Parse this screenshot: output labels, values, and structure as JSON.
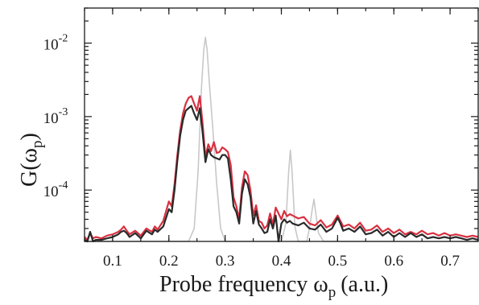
{
  "chart_data": {
    "type": "line",
    "xlabel": "Probe frequency ω",
    "xlabel_sub": "p",
    "xlabel_suffix": "(a.u.)",
    "ylabel": "G(ω",
    "ylabel_sub": "p",
    "ylabel_suffix": ")",
    "xlim": [
      0.05,
      0.75
    ],
    "ylim": [
      2e-05,
      0.03
    ],
    "yscale": "log",
    "grid": false,
    "legend": "none",
    "x_ticks": [
      {
        "value": 0.1,
        "label": "0.1"
      },
      {
        "value": 0.2,
        "label": "0.2"
      },
      {
        "value": 0.3,
        "label": "0.3"
      },
      {
        "value": 0.4,
        "label": "0.4"
      },
      {
        "value": 0.5,
        "label": "0.5"
      },
      {
        "value": 0.6,
        "label": "0.6"
      },
      {
        "value": 0.7,
        "label": "0.7"
      }
    ],
    "y_ticks": [
      {
        "value": 0.01,
        "base": "10",
        "exp": "-2"
      },
      {
        "value": 0.001,
        "base": "10",
        "exp": "-3"
      },
      {
        "value": 0.0001,
        "base": "10",
        "exp": "-4"
      }
    ],
    "series": [
      {
        "color": "#c8c8c8",
        "width": 1.6,
        "x": [
          0.05,
          0.2,
          0.235,
          0.245,
          0.252,
          0.258,
          0.262,
          0.265,
          0.268,
          0.272,
          0.278,
          0.285,
          0.292,
          0.3,
          0.4,
          0.408,
          0.413,
          0.416,
          0.419,
          0.424,
          0.43,
          0.445,
          0.45,
          0.455,
          0.458,
          0.461,
          0.466,
          0.475,
          0.75
        ],
        "y": [
          2e-05,
          2e-05,
          2e-05,
          3e-05,
          0.00018,
          0.0025,
          0.008,
          0.012,
          0.008,
          0.0028,
          0.0007,
          0.00012,
          3e-05,
          2e-05,
          2e-05,
          3.5e-05,
          0.00018,
          0.00035,
          0.00018,
          3.2e-05,
          2e-05,
          2e-05,
          3e-05,
          5.5e-05,
          7.5e-05,
          5e-05,
          2.6e-05,
          2e-05,
          2e-05
        ]
      },
      {
        "color": "#d93040",
        "width": 2.2,
        "x": [
          0.05,
          0.055,
          0.06,
          0.065,
          0.07,
          0.08,
          0.09,
          0.1,
          0.11,
          0.115,
          0.12,
          0.125,
          0.13,
          0.14,
          0.15,
          0.16,
          0.17,
          0.175,
          0.18,
          0.19,
          0.2,
          0.205,
          0.21,
          0.215,
          0.22,
          0.225,
          0.23,
          0.235,
          0.24,
          0.245,
          0.25,
          0.255,
          0.26,
          0.265,
          0.27,
          0.275,
          0.28,
          0.285,
          0.29,
          0.295,
          0.3,
          0.305,
          0.31,
          0.315,
          0.32,
          0.325,
          0.33,
          0.335,
          0.34,
          0.345,
          0.35,
          0.355,
          0.36,
          0.365,
          0.37,
          0.375,
          0.38,
          0.385,
          0.39,
          0.395,
          0.4,
          0.405,
          0.41,
          0.415,
          0.42,
          0.43,
          0.44,
          0.45,
          0.46,
          0.47,
          0.48,
          0.49,
          0.5,
          0.505,
          0.51,
          0.52,
          0.53,
          0.54,
          0.55,
          0.56,
          0.57,
          0.58,
          0.59,
          0.6,
          0.61,
          0.62,
          0.63,
          0.64,
          0.65,
          0.66,
          0.67,
          0.68,
          0.69,
          0.7,
          0.71,
          0.72,
          0.73,
          0.74,
          0.75
        ],
        "y": [
          2.3e-05,
          2.1e-05,
          2.6e-05,
          2.2e-05,
          2.3e-05,
          2.2e-05,
          2.4e-05,
          2.5e-05,
          2.7e-05,
          2.9e-05,
          3.2e-05,
          2.8e-05,
          2.5e-05,
          2.8e-05,
          2.4e-05,
          3e-05,
          2.7e-05,
          3.2e-05,
          2.9e-05,
          3.8e-05,
          7e-05,
          6e-05,
          0.00012,
          0.0003,
          0.00065,
          0.0011,
          0.0015,
          0.0018,
          0.0019,
          0.0015,
          0.0012,
          0.0019,
          0.0008,
          0.00028,
          0.00042,
          0.00034,
          0.00045,
          0.00032,
          0.00033,
          0.00038,
          0.00036,
          0.00033,
          0.00022,
          8e-05,
          6e-05,
          4e-05,
          0.00011,
          0.00018,
          0.00016,
          0.0001,
          4.5e-05,
          6.2e-05,
          3.8e-05,
          3.6e-05,
          3e-05,
          3.3e-05,
          4.8e-05,
          3.4e-05,
          5.8e-05,
          4.8e-05,
          4e-05,
          5.2e-05,
          4.4e-05,
          4.7e-05,
          4.5e-05,
          4.1e-05,
          4.3e-05,
          3.5e-05,
          3.3e-05,
          3.9e-05,
          3.1e-05,
          3.4e-05,
          4.5e-05,
          3.8e-05,
          3.2e-05,
          3.4e-05,
          3e-05,
          3.6e-05,
          2.8e-05,
          2.9e-05,
          3.3e-05,
          2.7e-05,
          3e-05,
          2.6e-05,
          2.9e-05,
          2.5e-05,
          2.7e-05,
          2.5e-05,
          2.8e-05,
          2.5e-05,
          2.6e-05,
          2.4e-05,
          2.6e-05,
          2.4e-05,
          2.5e-05,
          2.4e-05,
          2.3e-05,
          2.4e-05,
          2.3e-05
        ]
      },
      {
        "color": "#2a2a2a",
        "width": 2.2,
        "x": [
          0.05,
          0.055,
          0.06,
          0.065,
          0.07,
          0.08,
          0.09,
          0.1,
          0.11,
          0.115,
          0.12,
          0.125,
          0.13,
          0.14,
          0.15,
          0.16,
          0.17,
          0.175,
          0.18,
          0.19,
          0.2,
          0.205,
          0.21,
          0.215,
          0.22,
          0.225,
          0.23,
          0.235,
          0.24,
          0.245,
          0.25,
          0.255,
          0.26,
          0.265,
          0.27,
          0.275,
          0.28,
          0.285,
          0.29,
          0.295,
          0.3,
          0.305,
          0.31,
          0.315,
          0.32,
          0.325,
          0.33,
          0.335,
          0.34,
          0.345,
          0.35,
          0.355,
          0.36,
          0.365,
          0.37,
          0.375,
          0.38,
          0.385,
          0.39,
          0.395,
          0.4,
          0.405,
          0.41,
          0.415,
          0.42,
          0.43,
          0.44,
          0.45,
          0.46,
          0.47,
          0.48,
          0.49,
          0.5,
          0.505,
          0.51,
          0.52,
          0.53,
          0.54,
          0.55,
          0.56,
          0.57,
          0.58,
          0.59,
          0.6,
          0.61,
          0.62,
          0.63,
          0.64,
          0.65,
          0.66,
          0.67,
          0.68,
          0.69,
          0.7,
          0.71,
          0.72,
          0.73,
          0.74,
          0.75
        ],
        "y": [
          2.1e-05,
          2e-05,
          2.7e-05,
          2e-05,
          2.1e-05,
          2.1e-05,
          2.2e-05,
          2.3e-05,
          2.5e-05,
          2.7e-05,
          2.8e-05,
          2.6e-05,
          2.3e-05,
          2.6e-05,
          2.2e-05,
          2.8e-05,
          2.5e-05,
          2.9e-05,
          2.7e-05,
          3.2e-05,
          5.5e-05,
          5e-05,
          0.0001,
          0.00025,
          0.00055,
          0.0009,
          0.0012,
          0.0013,
          0.0014,
          0.0011,
          0.0009,
          0.0013,
          0.0006,
          0.00024,
          0.00036,
          0.0003,
          0.00028,
          0.00027,
          0.00026,
          0.0003,
          0.0003,
          0.00027,
          0.00014,
          6e-05,
          5e-05,
          3.5e-05,
          9e-05,
          0.00014,
          0.00012,
          8e-05,
          3.5e-05,
          5.2e-05,
          3.4e-05,
          3e-05,
          2.6e-05,
          2.7e-05,
          4e-05,
          3e-05,
          4.5e-05,
          2e-05,
          3.5e-05,
          4e-05,
          3.6e-05,
          3.8e-05,
          3.5e-05,
          3.3e-05,
          3.6e-05,
          3e-05,
          2.9e-05,
          3.4e-05,
          2.7e-05,
          3e-05,
          4.2e-05,
          3.5e-05,
          2.8e-05,
          3e-05,
          2.7e-05,
          3.2e-05,
          2.5e-05,
          2.6e-05,
          2.9e-05,
          2.4e-05,
          2.7e-05,
          2.3e-05,
          2.6e-05,
          2.3e-05,
          2.6e-05,
          2.3e-05,
          2.5e-05,
          2.2e-05,
          2.3e-05,
          2.2e-05,
          2.3e-05,
          2.2e-05,
          2.3e-05,
          2.2e-05,
          2.1e-05,
          2.2e-05,
          2.1e-05
        ]
      }
    ]
  }
}
